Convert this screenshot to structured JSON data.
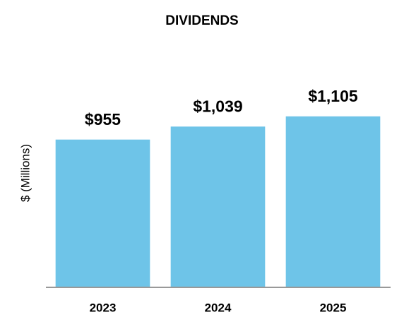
{
  "chart_data": {
    "type": "bar",
    "title": "DIVIDENDS",
    "y_label": "$ (Millions)",
    "categories": [
      "2023",
      "2024",
      "2025"
    ],
    "values": [
      955,
      1039,
      1105
    ],
    "value_labels": [
      "$955",
      "$1,039",
      "$1,105"
    ],
    "color": "#6ec4e8",
    "ylim": [
      0,
      1200
    ],
    "grid": false
  }
}
